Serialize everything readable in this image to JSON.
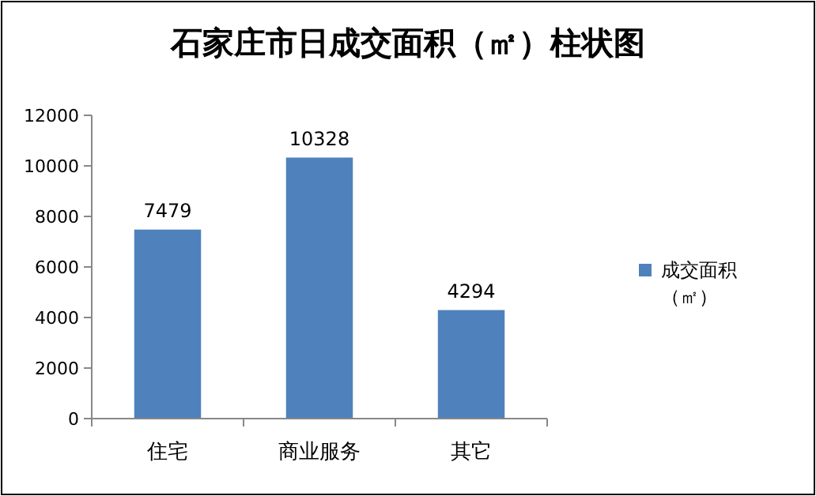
{
  "chart_data": {
    "type": "bar",
    "title": "石家庄市日成交面积（㎡）柱状图",
    "categories": [
      "住宅",
      "商业服务",
      "其它"
    ],
    "series": [
      {
        "name": "成交面积（㎡）",
        "color": "#4f81bd",
        "values": [
          7479,
          10328,
          4294
        ]
      }
    ],
    "ylim": [
      0,
      12000
    ],
    "yticks": [
      0,
      2000,
      4000,
      6000,
      8000,
      10000,
      12000
    ],
    "data_labels": true,
    "legend": "right"
  }
}
